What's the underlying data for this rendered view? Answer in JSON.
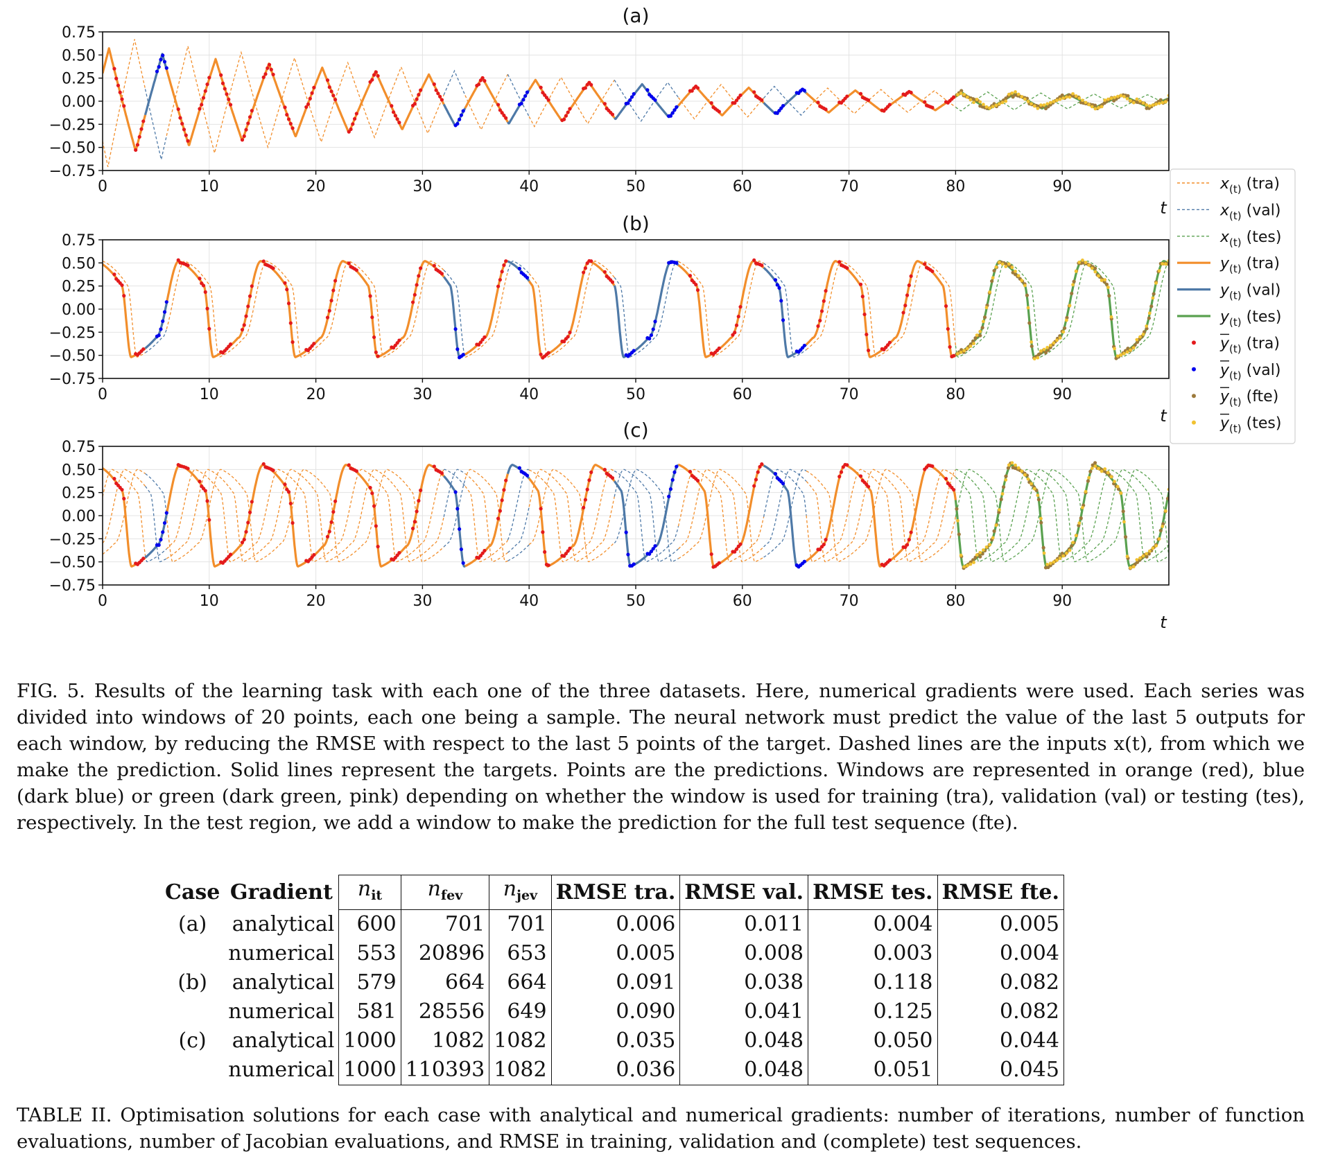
{
  "chart_data": [
    {
      "type": "line",
      "panel": "(a)",
      "xlabel": "t",
      "xlim": [
        0,
        100
      ],
      "ylim": [
        -0.75,
        0.75
      ],
      "xticks": [
        0,
        10,
        20,
        30,
        40,
        50,
        60,
        70,
        80,
        90
      ],
      "yticks": [
        "0.75",
        "0.50",
        "0.25",
        "0.00",
        "−0.25",
        "−0.50",
        "−0.75"
      ],
      "grid": true,
      "signal": "triangle wave, period 5, amplitude decaying 0.58 → 0.06",
      "regions": [
        {
          "split": "tra",
          "t": [
            0,
            4
          ]
        },
        {
          "split": "val",
          "t": [
            4,
            6
          ]
        },
        {
          "split": "tra",
          "t": [
            6,
            32
          ]
        },
        {
          "split": "val",
          "t": [
            32,
            34
          ]
        },
        {
          "split": "tra",
          "t": [
            34,
            38
          ]
        },
        {
          "split": "val",
          "t": [
            38,
            40
          ]
        },
        {
          "split": "tra",
          "t": [
            40,
            48
          ]
        },
        {
          "split": "val",
          "t": [
            48,
            54
          ]
        },
        {
          "split": "tra",
          "t": [
            54,
            62
          ]
        },
        {
          "split": "val",
          "t": [
            62,
            66
          ]
        },
        {
          "split": "tra",
          "t": [
            66,
            80
          ]
        },
        {
          "split": "tes",
          "t": [
            80,
            100
          ]
        }
      ]
    },
    {
      "type": "line",
      "panel": "(b)",
      "xlabel": "t",
      "xlim": [
        0,
        100
      ],
      "ylim": [
        -0.75,
        0.75
      ],
      "xticks": [
        0,
        10,
        20,
        30,
        40,
        50,
        60,
        70,
        80,
        90
      ],
      "yticks": [
        "0.75",
        "0.50",
        "0.25",
        "0.00",
        "−0.25",
        "−0.50",
        "−0.75"
      ],
      "grid": true,
      "signal": "relaxation oscillation, period 7.7, range −0.52 to 0.53",
      "regions": [
        {
          "split": "tra",
          "t": [
            0,
            4
          ]
        },
        {
          "split": "val",
          "t": [
            4,
            6
          ]
        },
        {
          "split": "tra",
          "t": [
            6,
            32
          ]
        },
        {
          "split": "val",
          "t": [
            32,
            34
          ]
        },
        {
          "split": "tra",
          "t": [
            34,
            38
          ]
        },
        {
          "split": "val",
          "t": [
            38,
            40
          ]
        },
        {
          "split": "tra",
          "t": [
            40,
            48
          ]
        },
        {
          "split": "val",
          "t": [
            48,
            54
          ]
        },
        {
          "split": "tra",
          "t": [
            54,
            62
          ]
        },
        {
          "split": "val",
          "t": [
            62,
            66
          ]
        },
        {
          "split": "tra",
          "t": [
            66,
            80
          ]
        },
        {
          "split": "tes",
          "t": [
            80,
            100
          ]
        }
      ]
    },
    {
      "type": "line",
      "panel": "(c)",
      "xlabel": "t",
      "xlim": [
        0,
        100
      ],
      "ylim": [
        -0.75,
        0.75
      ],
      "xticks": [
        0,
        10,
        20,
        30,
        40,
        50,
        60,
        70,
        80,
        90
      ],
      "yticks": [
        "0.75",
        "0.50",
        "0.25",
        "0.00",
        "−0.25",
        "−0.50",
        "−0.75"
      ],
      "grid": true,
      "signal": "relaxation oscillation, period 7.8, range −0.55 to 0.56",
      "regions": [
        {
          "split": "tra",
          "t": [
            0,
            4
          ]
        },
        {
          "split": "val",
          "t": [
            4,
            6
          ]
        },
        {
          "split": "tra",
          "t": [
            6,
            32
          ]
        },
        {
          "split": "val",
          "t": [
            32,
            34
          ]
        },
        {
          "split": "tra",
          "t": [
            34,
            38
          ]
        },
        {
          "split": "val",
          "t": [
            38,
            40
          ]
        },
        {
          "split": "tra",
          "t": [
            40,
            48
          ]
        },
        {
          "split": "val",
          "t": [
            48,
            54
          ]
        },
        {
          "split": "tra",
          "t": [
            54,
            62
          ]
        },
        {
          "split": "val",
          "t": [
            62,
            66
          ]
        },
        {
          "split": "tra",
          "t": [
            66,
            80
          ]
        },
        {
          "split": "tes",
          "t": [
            80,
            100
          ]
        }
      ]
    }
  ],
  "legend": {
    "placement": "right",
    "entries": [
      {
        "label": "x(t) (tra)",
        "base": "x",
        "bar": false,
        "tag": "(tra)",
        "style": "dashed",
        "color": "#f28e2b"
      },
      {
        "label": "x(t) (val)",
        "base": "x",
        "bar": false,
        "tag": "(val)",
        "style": "dashed",
        "color": "#4e79a7"
      },
      {
        "label": "x(t) (tes)",
        "base": "x",
        "bar": false,
        "tag": "(tes)",
        "style": "dashed",
        "color": "#59a14f"
      },
      {
        "label": "y(t) (tra)",
        "base": "y",
        "bar": false,
        "tag": "(tra)",
        "style": "solid",
        "color": "#f28e2b"
      },
      {
        "label": "y(t) (val)",
        "base": "y",
        "bar": false,
        "tag": "(val)",
        "style": "solid",
        "color": "#4e79a7"
      },
      {
        "label": "y(t) (tes)",
        "base": "y",
        "bar": false,
        "tag": "(tes)",
        "style": "solid",
        "color": "#59a14f"
      },
      {
        "label": "ȳ(t) (tra)",
        "base": "y",
        "bar": true,
        "tag": "(tra)",
        "style": "dot",
        "color": "#e31a1c"
      },
      {
        "label": "ȳ(t) (val)",
        "base": "y",
        "bar": true,
        "tag": "(val)",
        "style": "dot",
        "color": "#0000ee"
      },
      {
        "label": "ȳ(t) (fte)",
        "base": "y",
        "bar": true,
        "tag": "(fte)",
        "style": "dot",
        "color": "#9c7a3c"
      },
      {
        "label": "ȳ(t) (tes)",
        "base": "y",
        "bar": true,
        "tag": "(tes)",
        "style": "dot",
        "color": "#f1c232"
      }
    ]
  },
  "colors": {
    "tra_line": "#f28e2b",
    "val_line": "#4e79a7",
    "tes_line": "#59a14f",
    "tra_pred": "#e31a1c",
    "val_pred": "#0000ee",
    "fte_pred": "#9c7a3c",
    "tes_pred": "#f1c232"
  },
  "figure_caption": "FIG. 5. Results of the learning task with each one of the three datasets. Here, numerical gradients were used. Each series was divided into windows of 20 points, each one being a sample. The neural network must predict the value of the last 5 outputs for each window, by reducing the RMSE with respect to the last 5 points of the target. Dashed lines are the inputs x(t), from which we make the prediction. Solid lines represent the targets. Points are the predictions. Windows are represented in orange (red), blue (dark blue) or green (dark green, pink) depending on whether the window is used for training (tra), validation (val) or testing (tes), respectively. In the test region, we add a window to make the prediction for the full test sequence (fte).",
  "table": {
    "headers": {
      "case": "Case",
      "gradient": "Gradient",
      "n_it": {
        "base": "n",
        "sub": "it"
      },
      "n_fev": {
        "base": "n",
        "sub": "fev"
      },
      "n_jev": {
        "base": "n",
        "sub": "jev"
      },
      "rmse_tra": "RMSE tra.",
      "rmse_val": "RMSE val.",
      "rmse_tes": "RMSE tes.",
      "rmse_fte": "RMSE fte."
    },
    "rows": [
      {
        "case": "(a)",
        "gradient": "analytical",
        "n_it": "600",
        "n_fev": "701",
        "n_jev": "701",
        "rmse_tra": "0.006",
        "rmse_val": "0.011",
        "rmse_tes": "0.004",
        "rmse_fte": "0.005"
      },
      {
        "case": "",
        "gradient": "numerical",
        "n_it": "553",
        "n_fev": "20896",
        "n_jev": "653",
        "rmse_tra": "0.005",
        "rmse_val": "0.008",
        "rmse_tes": "0.003",
        "rmse_fte": "0.004"
      },
      {
        "case": "(b)",
        "gradient": "analytical",
        "n_it": "579",
        "n_fev": "664",
        "n_jev": "664",
        "rmse_tra": "0.091",
        "rmse_val": "0.038",
        "rmse_tes": "0.118",
        "rmse_fte": "0.082"
      },
      {
        "case": "",
        "gradient": "numerical",
        "n_it": "581",
        "n_fev": "28556",
        "n_jev": "649",
        "rmse_tra": "0.090",
        "rmse_val": "0.041",
        "rmse_tes": "0.125",
        "rmse_fte": "0.082"
      },
      {
        "case": "(c)",
        "gradient": "analytical",
        "n_it": "1000",
        "n_fev": "1082",
        "n_jev": "1082",
        "rmse_tra": "0.035",
        "rmse_val": "0.048",
        "rmse_tes": "0.050",
        "rmse_fte": "0.044"
      },
      {
        "case": "",
        "gradient": "numerical",
        "n_it": "1000",
        "n_fev": "110393",
        "n_jev": "1082",
        "rmse_tra": "0.036",
        "rmse_val": "0.048",
        "rmse_tes": "0.051",
        "rmse_fte": "0.045"
      }
    ]
  },
  "table_caption": "TABLE II. Optimisation solutions for each case with analytical and numerical gradients: number of iterations, number of function evaluations, number of Jacobian evaluations, and RMSE in training, validation and (complete) test sequences."
}
